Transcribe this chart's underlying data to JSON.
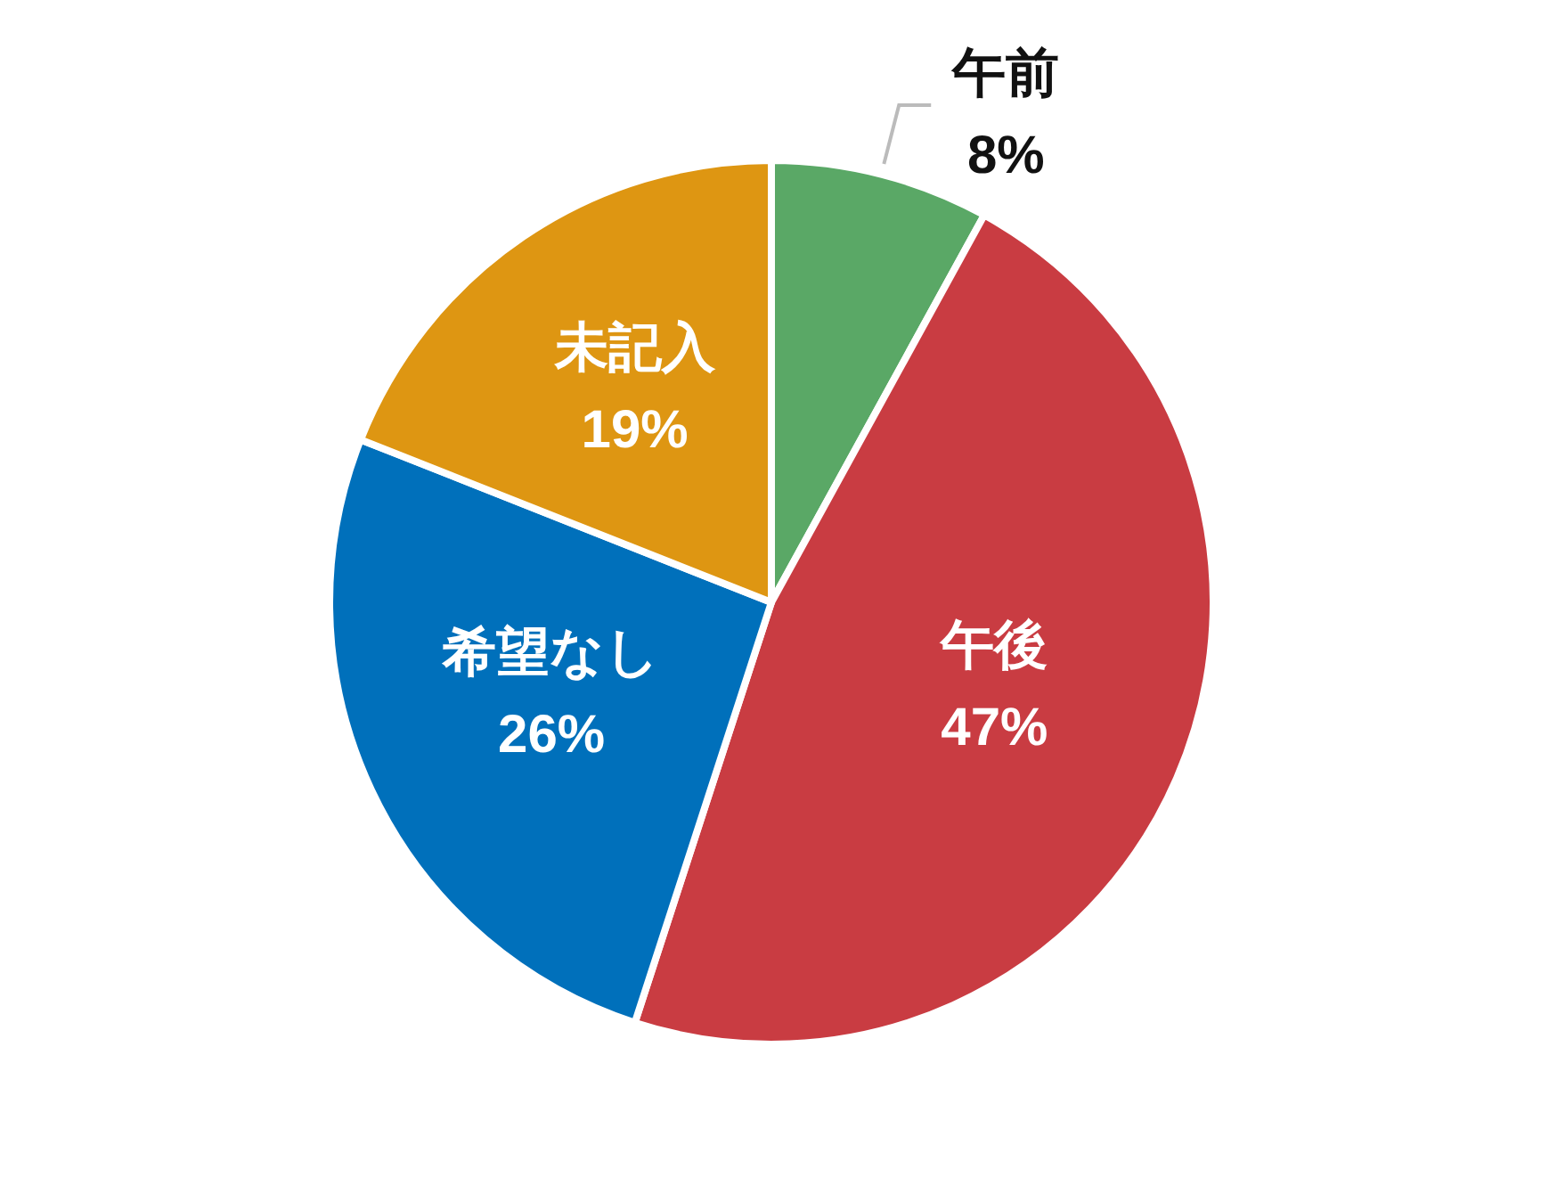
{
  "chart_data": {
    "type": "pie",
    "categories": [
      "午前",
      "午後",
      "希望なし",
      "未記入"
    ],
    "values": [
      8,
      47,
      26,
      19
    ],
    "colors": [
      "#5aa866",
      "#c93c42",
      "#0070bb",
      "#de9612"
    ],
    "value_labels": [
      "8%",
      "47%",
      "26%",
      "19%"
    ]
  }
}
